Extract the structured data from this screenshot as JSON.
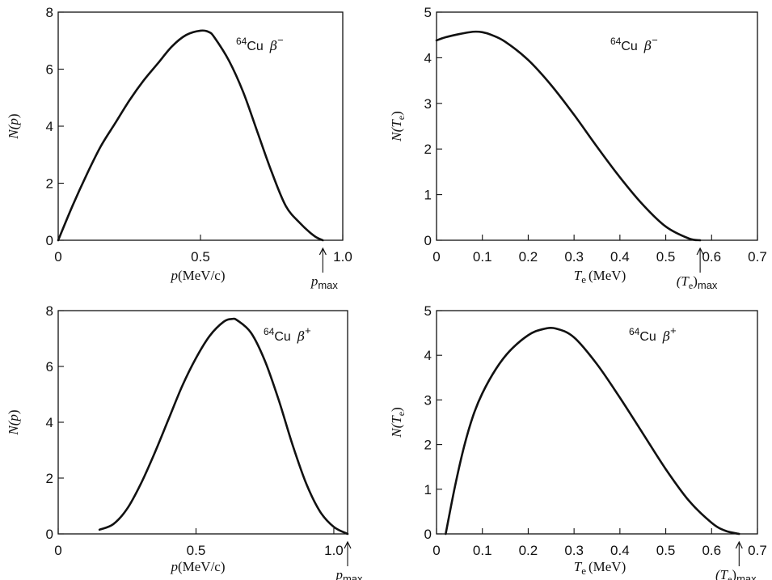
{
  "chart_data": [
    {
      "type": "line",
      "title": "",
      "annotation": {
        "mass": "64",
        "element": "Cu",
        "particle": "β",
        "charge": "−"
      },
      "xlabel": {
        "var": "p",
        "unit": "(MeV/c)"
      },
      "ylabel": {
        "var": "N",
        "arg": "p"
      },
      "xlim": [
        0,
        1.0
      ],
      "ylim": [
        0,
        8
      ],
      "xticks": [
        0,
        0.5,
        1.0
      ],
      "xtick_labels": [
        "0",
        "0.5",
        "1.0"
      ],
      "yticks": [
        0,
        2,
        4,
        6,
        8
      ],
      "ytick_labels": [
        "0",
        "2",
        "4",
        "6",
        "8"
      ],
      "endpoint": {
        "x": 0.93,
        "label_main": "p",
        "label_sub": "max"
      },
      "series": [
        {
          "x": [
            0,
            0.05,
            0.1,
            0.15,
            0.2,
            0.25,
            0.3,
            0.35,
            0.4,
            0.45,
            0.5,
            0.53,
            0.55,
            0.6,
            0.65,
            0.7,
            0.75,
            0.8,
            0.85,
            0.9,
            0.93
          ],
          "y": [
            0,
            1.2,
            2.3,
            3.3,
            4.1,
            4.9,
            5.6,
            6.2,
            6.8,
            7.2,
            7.35,
            7.3,
            7.1,
            6.3,
            5.2,
            3.8,
            2.4,
            1.2,
            0.6,
            0.15,
            0
          ]
        }
      ]
    },
    {
      "type": "line",
      "title": "",
      "annotation": {
        "mass": "64",
        "element": "Cu",
        "particle": "β",
        "charge": "−"
      },
      "xlabel": {
        "var": "T",
        "sub": "e",
        "unit": "(MeV)"
      },
      "ylabel": {
        "var": "N",
        "arg": "T",
        "argsub": "e"
      },
      "xlim": [
        0,
        0.7
      ],
      "ylim": [
        0,
        5
      ],
      "xticks": [
        0,
        0.1,
        0.2,
        0.3,
        0.4,
        0.5,
        0.6,
        0.7
      ],
      "xtick_labels": [
        "0",
        "0.1",
        "0.2",
        "0.3",
        "0.4",
        "0.5",
        "0.6",
        "0.7"
      ],
      "yticks": [
        0,
        1,
        2,
        3,
        4,
        5
      ],
      "ytick_labels": [
        "0",
        "1",
        "2",
        "3",
        "4",
        "5"
      ],
      "endpoint": {
        "x": 0.575,
        "label_main": "(T",
        "label_mainsub": "e",
        "label_close": ")",
        "label_sub": "max"
      },
      "series": [
        {
          "x": [
            0,
            0.02,
            0.05,
            0.08,
            0.1,
            0.12,
            0.15,
            0.2,
            0.25,
            0.3,
            0.35,
            0.4,
            0.45,
            0.5,
            0.55,
            0.575
          ],
          "y": [
            4.38,
            4.45,
            4.52,
            4.57,
            4.56,
            4.5,
            4.35,
            3.95,
            3.4,
            2.75,
            2.05,
            1.38,
            0.78,
            0.3,
            0.04,
            0
          ]
        }
      ]
    },
    {
      "type": "line",
      "title": "",
      "annotation": {
        "mass": "64",
        "element": "Cu",
        "particle": "β",
        "charge": "+"
      },
      "xlabel": {
        "var": "p",
        "unit": "(MeV/c)"
      },
      "ylabel": {
        "var": "N",
        "arg": "p"
      },
      "xlim": [
        0,
        1.05
      ],
      "ylim": [
        0,
        8
      ],
      "xticks": [
        0,
        0.5,
        1.0
      ],
      "xtick_labels": [
        "0",
        "0.5",
        "1.0"
      ],
      "yticks": [
        0,
        2,
        4,
        6,
        8
      ],
      "ytick_labels": [
        "0",
        "2",
        "4",
        "6",
        "8"
      ],
      "endpoint": {
        "x": 1.05,
        "label_main": "p",
        "label_sub": "max"
      },
      "series": [
        {
          "x": [
            0.15,
            0.2,
            0.25,
            0.3,
            0.35,
            0.4,
            0.45,
            0.5,
            0.55,
            0.6,
            0.63,
            0.65,
            0.7,
            0.75,
            0.8,
            0.85,
            0.9,
            0.95,
            1.0,
            1.05
          ],
          "y": [
            0.15,
            0.35,
            0.9,
            1.8,
            2.9,
            4.1,
            5.3,
            6.3,
            7.1,
            7.6,
            7.7,
            7.65,
            7.2,
            6.2,
            4.8,
            3.2,
            1.8,
            0.8,
            0.25,
            0
          ]
        }
      ]
    },
    {
      "type": "line",
      "title": "",
      "annotation": {
        "mass": "64",
        "element": "Cu",
        "particle": "β",
        "charge": "+"
      },
      "xlabel": {
        "var": "T",
        "sub": "e",
        "unit": "(MeV)"
      },
      "ylabel": {
        "var": "N",
        "arg": "T",
        "argsub": "e"
      },
      "xlim": [
        0,
        0.7
      ],
      "ylim": [
        0,
        5
      ],
      "xticks": [
        0,
        0.1,
        0.2,
        0.3,
        0.4,
        0.5,
        0.6,
        0.7
      ],
      "xtick_labels": [
        "0",
        "0.1",
        "0.2",
        "0.3",
        "0.4",
        "0.5",
        "0.6",
        "0.7"
      ],
      "yticks": [
        0,
        1,
        2,
        3,
        4,
        5
      ],
      "ytick_labels": [
        "0",
        "1",
        "2",
        "3",
        "4",
        "5"
      ],
      "endpoint": {
        "x": 0.66,
        "label_main": "(T",
        "label_mainsub": "e",
        "label_close": ")",
        "label_sub": "max"
      },
      "series": [
        {
          "x": [
            0.02,
            0.04,
            0.06,
            0.08,
            0.1,
            0.13,
            0.16,
            0.2,
            0.23,
            0.26,
            0.3,
            0.35,
            0.4,
            0.45,
            0.5,
            0.55,
            0.6,
            0.63,
            0.66
          ],
          "y": [
            0,
            1.05,
            1.95,
            2.65,
            3.15,
            3.7,
            4.1,
            4.45,
            4.58,
            4.6,
            4.4,
            3.8,
            3.05,
            2.25,
            1.45,
            0.75,
            0.25,
            0.07,
            0
          ]
        }
      ]
    }
  ]
}
